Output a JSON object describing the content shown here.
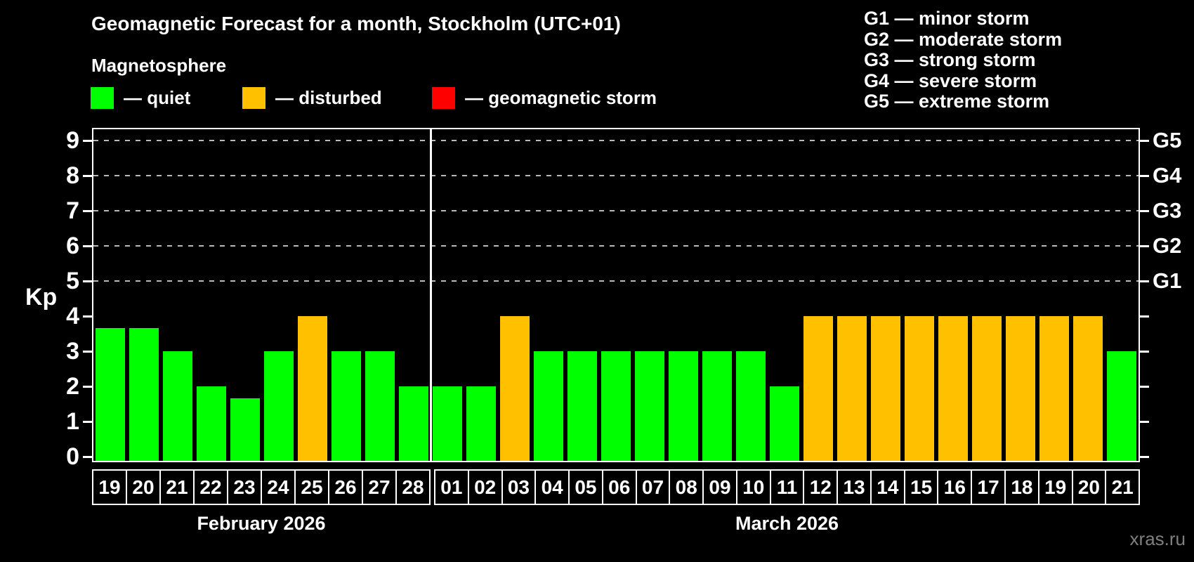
{
  "title": "Geomagnetic Forecast for a month, Stockholm (UTC+01)",
  "subtitle": "Magnetosphere",
  "legend": {
    "items": [
      {
        "status": "quiet",
        "label": "— quiet",
        "color": "#00ff00"
      },
      {
        "status": "disturbed",
        "label": "— disturbed",
        "color": "#ffc000"
      },
      {
        "status": "storm",
        "label": "— geomagnetic storm",
        "color": "#ff0000"
      }
    ]
  },
  "g_scale_legend": [
    "G1 — minor storm",
    "G2 — moderate storm",
    "G3 — strong storm",
    "G4 — severe storm",
    "G5 — extreme storm"
  ],
  "watermark": "xras.ru",
  "chart_data": {
    "type": "bar",
    "ylabel": "Kp",
    "ylim": [
      0,
      9
    ],
    "yticks": [
      0,
      1,
      2,
      3,
      4,
      5,
      6,
      7,
      8,
      9
    ],
    "gridlines_at_kp": [
      5,
      6,
      7,
      8,
      9
    ],
    "right_axis": [
      {
        "kp": 5,
        "label": "G1"
      },
      {
        "kp": 6,
        "label": "G2"
      },
      {
        "kp": 7,
        "label": "G3"
      },
      {
        "kp": 8,
        "label": "G4"
      },
      {
        "kp": 9,
        "label": "G5"
      }
    ],
    "status_colors": {
      "quiet": "#00ff00",
      "disturbed": "#ffc000",
      "storm": "#ff0000"
    },
    "grid_color": "#b9b9b9",
    "months": [
      {
        "label": "February 2026",
        "days": [
          {
            "date": "19",
            "kp": 3.67,
            "status": "quiet"
          },
          {
            "date": "20",
            "kp": 3.67,
            "status": "quiet"
          },
          {
            "date": "21",
            "kp": 3,
            "status": "quiet"
          },
          {
            "date": "22",
            "kp": 2,
            "status": "quiet"
          },
          {
            "date": "23",
            "kp": 1.67,
            "status": "quiet"
          },
          {
            "date": "24",
            "kp": 3,
            "status": "quiet"
          },
          {
            "date": "25",
            "kp": 4,
            "status": "disturbed"
          },
          {
            "date": "26",
            "kp": 3,
            "status": "quiet"
          },
          {
            "date": "27",
            "kp": 3,
            "status": "quiet"
          },
          {
            "date": "28",
            "kp": 2,
            "status": "quiet"
          }
        ]
      },
      {
        "label": "March 2026",
        "days": [
          {
            "date": "01",
            "kp": 2,
            "status": "quiet"
          },
          {
            "date": "02",
            "kp": 2,
            "status": "quiet"
          },
          {
            "date": "03",
            "kp": 4,
            "status": "disturbed"
          },
          {
            "date": "04",
            "kp": 3,
            "status": "quiet"
          },
          {
            "date": "05",
            "kp": 3,
            "status": "quiet"
          },
          {
            "date": "06",
            "kp": 3,
            "status": "quiet"
          },
          {
            "date": "07",
            "kp": 3,
            "status": "quiet"
          },
          {
            "date": "08",
            "kp": 3,
            "status": "quiet"
          },
          {
            "date": "09",
            "kp": 3,
            "status": "quiet"
          },
          {
            "date": "10",
            "kp": 3,
            "status": "quiet"
          },
          {
            "date": "11",
            "kp": 2,
            "status": "quiet"
          },
          {
            "date": "12",
            "kp": 4,
            "status": "disturbed"
          },
          {
            "date": "13",
            "kp": 4,
            "status": "disturbed"
          },
          {
            "date": "14",
            "kp": 4,
            "status": "disturbed"
          },
          {
            "date": "15",
            "kp": 4,
            "status": "disturbed"
          },
          {
            "date": "16",
            "kp": 4,
            "status": "disturbed"
          },
          {
            "date": "17",
            "kp": 4,
            "status": "disturbed"
          },
          {
            "date": "18",
            "kp": 4,
            "status": "disturbed"
          },
          {
            "date": "19",
            "kp": 4,
            "status": "disturbed"
          },
          {
            "date": "20",
            "kp": 4,
            "status": "disturbed"
          },
          {
            "date": "21",
            "kp": 3,
            "status": "quiet"
          }
        ]
      }
    ]
  }
}
